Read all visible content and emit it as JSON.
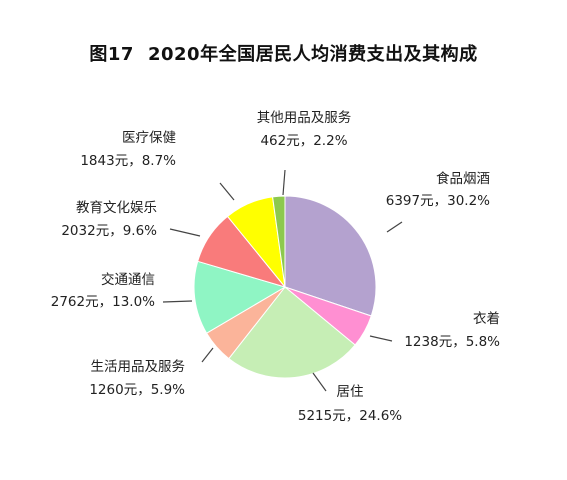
{
  "figure_number": "图17",
  "chart_data": {
    "type": "pie",
    "title": "2020年全国居民人均消费支出及其构成",
    "start_angle_deg": 0,
    "direction": "clockwise",
    "slices": [
      {
        "name": "食品烟酒",
        "value": 6397,
        "value_text": "6397元，30.2%",
        "percent": 30.2,
        "color": "#b4a2cf"
      },
      {
        "name": "衣着",
        "value": 1238,
        "value_text": "1238元，5.8%",
        "percent": 5.8,
        "color": "#ff8fd2"
      },
      {
        "name": "居住",
        "value": 5215,
        "value_text": "5215元，24.6%",
        "percent": 24.6,
        "color": "#c6eeb5"
      },
      {
        "name": "生活用品及服务",
        "value": 1260,
        "value_text": "1260元，5.9%",
        "percent": 5.9,
        "color": "#fbb49a"
      },
      {
        "name": "交通通信",
        "value": 2762,
        "value_text": "2762元，13.0%",
        "percent": 13.0,
        "color": "#8ff5c4"
      },
      {
        "name": "教育文化娱乐",
        "value": 2032,
        "value_text": "2032元，9.6%",
        "percent": 9.6,
        "color": "#f97b7b"
      },
      {
        "name": "医疗保健",
        "value": 1843,
        "value_text": "1843元，8.7%",
        "percent": 8.7,
        "color": "#ffff00"
      },
      {
        "name": "其他用品及服务",
        "value": 462,
        "value_text": "462元，2.2%",
        "percent": 2.2,
        "color": "#8dc94d"
      }
    ]
  }
}
